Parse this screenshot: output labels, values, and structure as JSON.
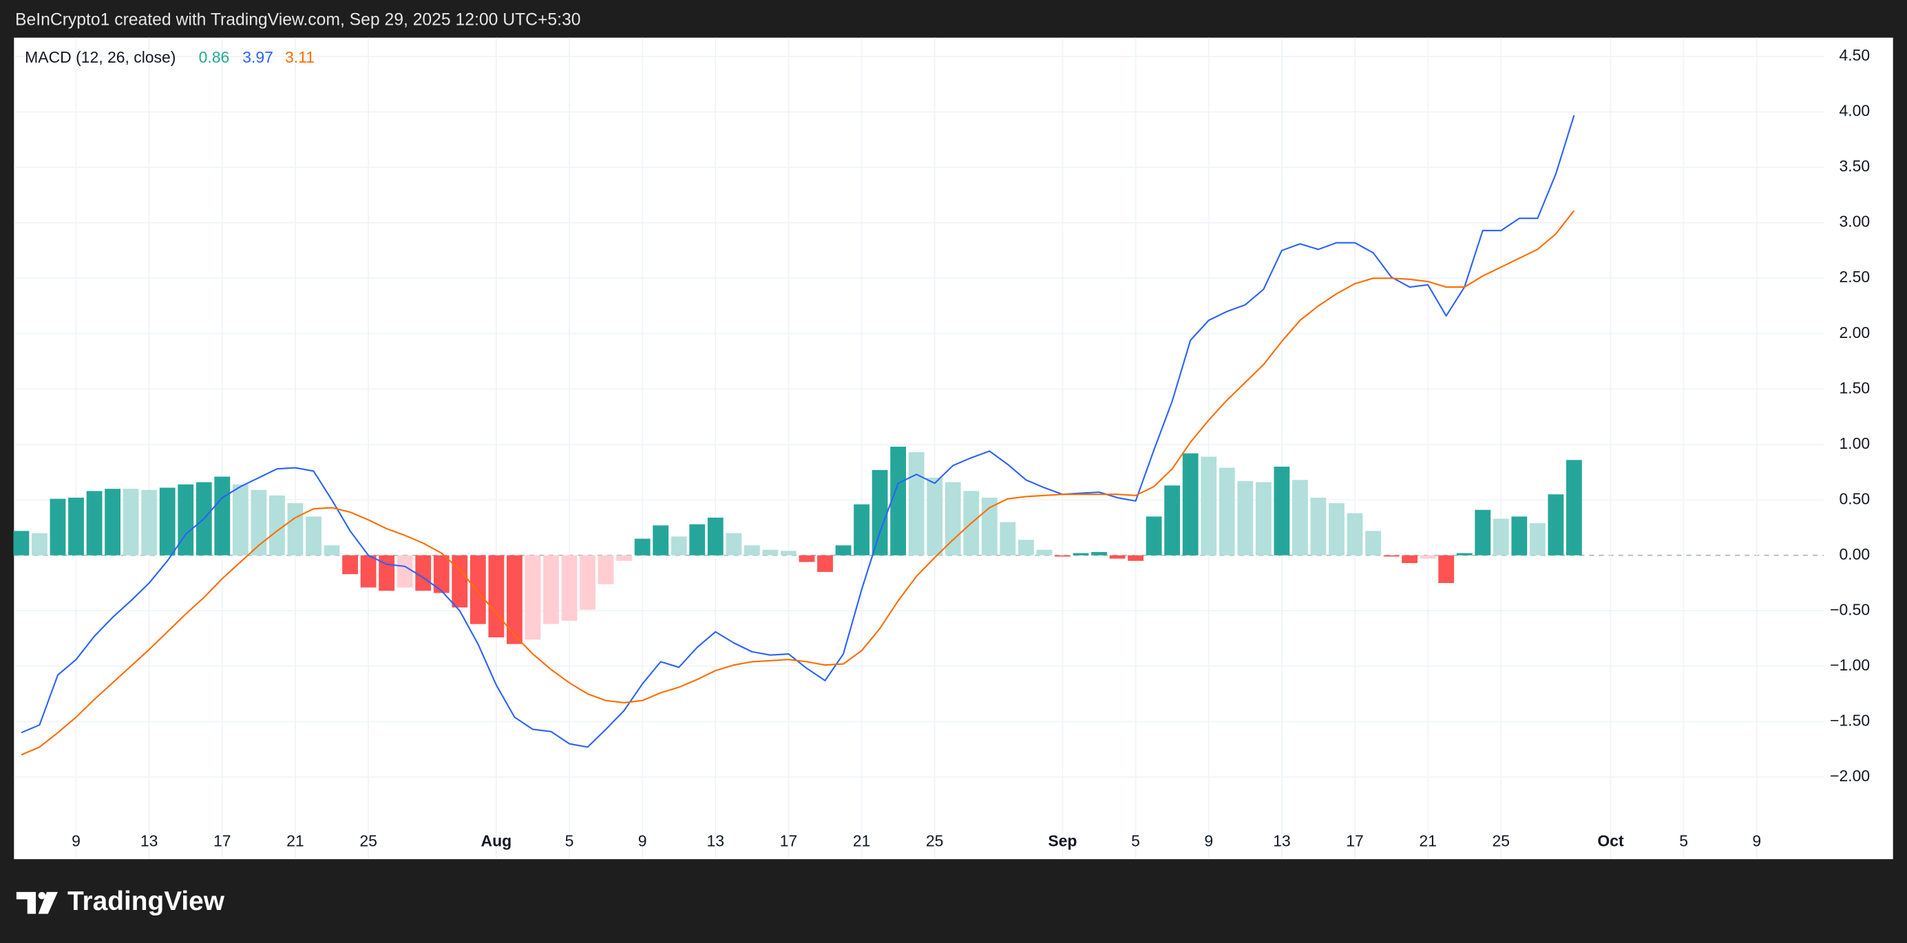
{
  "header": {
    "text": "BeInCrypto1 created with TradingView.com, Sep 29, 2025 12:00 UTC+5:30"
  },
  "footer": {
    "brand": "TradingView"
  },
  "chart_data": {
    "type": "combo",
    "legend_title": "MACD (12, 26, close)",
    "x": [
      "2025-07-06",
      "2025-07-07",
      "2025-07-08",
      "2025-07-09",
      "2025-07-10",
      "2025-07-11",
      "2025-07-12",
      "2025-07-13",
      "2025-07-14",
      "2025-07-15",
      "2025-07-16",
      "2025-07-17",
      "2025-07-18",
      "2025-07-19",
      "2025-07-20",
      "2025-07-21",
      "2025-07-22",
      "2025-07-23",
      "2025-07-24",
      "2025-07-25",
      "2025-07-26",
      "2025-07-27",
      "2025-07-28",
      "2025-07-29",
      "2025-07-30",
      "2025-07-31",
      "2025-08-01",
      "2025-08-02",
      "2025-08-03",
      "2025-08-04",
      "2025-08-05",
      "2025-08-06",
      "2025-08-07",
      "2025-08-08",
      "2025-08-09",
      "2025-08-10",
      "2025-08-11",
      "2025-08-12",
      "2025-08-13",
      "2025-08-14",
      "2025-08-15",
      "2025-08-16",
      "2025-08-17",
      "2025-08-18",
      "2025-08-19",
      "2025-08-20",
      "2025-08-21",
      "2025-08-22",
      "2025-08-23",
      "2025-08-24",
      "2025-08-25",
      "2025-08-26",
      "2025-08-27",
      "2025-08-28",
      "2025-08-29",
      "2025-08-30",
      "2025-08-31",
      "2025-09-01",
      "2025-09-02",
      "2025-09-03",
      "2025-09-04",
      "2025-09-05",
      "2025-09-06",
      "2025-09-07",
      "2025-09-08",
      "2025-09-09",
      "2025-09-10",
      "2025-09-11",
      "2025-09-12",
      "2025-09-13",
      "2025-09-14",
      "2025-09-15",
      "2025-09-16",
      "2025-09-17",
      "2025-09-18",
      "2025-09-19",
      "2025-09-20",
      "2025-09-21",
      "2025-09-22",
      "2025-09-23",
      "2025-09-24",
      "2025-09-25",
      "2025-09-26",
      "2025-09-27",
      "2025-09-28",
      "2025-09-29"
    ],
    "series": [
      {
        "type": "bar",
        "colors": {
          "rise": "#26a69a",
          "fall": "#b2dfdb",
          "neg_fall": "#ff5252",
          "neg_rise": "#ffcdd2"
        },
        "values": [
          0.22,
          0.2,
          0.51,
          0.52,
          0.58,
          0.6,
          0.6,
          0.59,
          0.61,
          0.64,
          0.66,
          0.71,
          0.64,
          0.59,
          0.54,
          0.47,
          0.35,
          0.09,
          -0.17,
          -0.29,
          -0.32,
          -0.29,
          -0.32,
          -0.34,
          -0.47,
          -0.62,
          -0.74,
          -0.8,
          -0.76,
          -0.62,
          -0.59,
          -0.49,
          -0.26,
          -0.05,
          0.15,
          0.27,
          0.17,
          0.28,
          0.34,
          0.2,
          0.09,
          0.05,
          0.04,
          -0.06,
          -0.15,
          0.09,
          0.46,
          0.77,
          0.98,
          0.93,
          0.7,
          0.66,
          0.58,
          0.52,
          0.3,
          0.14,
          0.05,
          -0.01,
          0.02,
          0.03,
          -0.03,
          -0.05,
          0.35,
          0.63,
          0.92,
          0.89,
          0.79,
          0.67,
          0.66,
          0.8,
          0.68,
          0.52,
          0.47,
          0.38,
          0.22,
          -0.01,
          -0.07,
          -0.03,
          -0.25,
          0.02,
          0.41,
          0.33,
          0.35,
          0.29,
          0.55,
          0.86
        ]
      },
      {
        "type": "line",
        "color": "#2962ff",
        "values": [
          -1.6,
          -1.53,
          -1.08,
          -0.94,
          -0.73,
          -0.56,
          -0.41,
          -0.25,
          -0.05,
          0.19,
          0.33,
          0.52,
          0.62,
          0.7,
          0.78,
          0.79,
          0.76,
          0.5,
          0.22,
          0.0,
          -0.08,
          -0.1,
          -0.2,
          -0.32,
          -0.5,
          -0.8,
          -1.17,
          -1.46,
          -1.57,
          -1.59,
          -1.7,
          -1.73,
          -1.57,
          -1.4,
          -1.16,
          -0.96,
          -1.01,
          -0.83,
          -0.69,
          -0.79,
          -0.87,
          -0.9,
          -0.89,
          -1.02,
          -1.13,
          -0.89,
          -0.31,
          0.21,
          0.65,
          0.73,
          0.65,
          0.81,
          0.88,
          0.94,
          0.82,
          0.68,
          0.61,
          0.55,
          0.56,
          0.57,
          0.52,
          0.49,
          0.95,
          1.39,
          1.94,
          2.12,
          2.2,
          2.26,
          2.4,
          2.75,
          2.81,
          2.76,
          2.82,
          2.82,
          2.73,
          2.51,
          2.42,
          2.44,
          2.16,
          2.42,
          2.93,
          2.93,
          3.04,
          3.04,
          3.44,
          3.97
        ]
      },
      {
        "type": "line",
        "color": "#ff6d00",
        "values": [
          -1.8,
          -1.73,
          -1.6,
          -1.46,
          -1.3,
          -1.15,
          -1.0,
          -0.85,
          -0.69,
          -0.53,
          -0.38,
          -0.21,
          -0.06,
          0.09,
          0.22,
          0.34,
          0.42,
          0.43,
          0.39,
          0.32,
          0.24,
          0.18,
          0.11,
          0.02,
          -0.13,
          -0.33,
          -0.52,
          -0.72,
          -0.89,
          -1.03,
          -1.15,
          -1.25,
          -1.31,
          -1.33,
          -1.31,
          -1.24,
          -1.19,
          -1.12,
          -1.04,
          -0.99,
          -0.96,
          -0.95,
          -0.94,
          -0.96,
          -0.99,
          -0.98,
          -0.86,
          -0.66,
          -0.41,
          -0.19,
          -0.02,
          0.14,
          0.29,
          0.43,
          0.51,
          0.53,
          0.54,
          0.55,
          0.55,
          0.55,
          0.55,
          0.54,
          0.62,
          0.78,
          1.02,
          1.22,
          1.4,
          1.56,
          1.72,
          1.93,
          2.12,
          2.25,
          2.36,
          2.45,
          2.5,
          2.5,
          2.49,
          2.47,
          2.42,
          2.42,
          2.52,
          2.6,
          2.68,
          2.76,
          2.9,
          3.11
        ]
      }
    ],
    "xlim": [
      "2025-07-05T14:24",
      "2025-10-12T16:00"
    ],
    "xticks": [
      {
        "value": "2025-07-09",
        "label": "9"
      },
      {
        "value": "2025-07-13",
        "label": "13"
      },
      {
        "value": "2025-07-17",
        "label": "17"
      },
      {
        "value": "2025-07-21",
        "label": "21"
      },
      {
        "value": "2025-07-25",
        "label": "25"
      },
      {
        "value": "2025-08-01",
        "label": "Aug"
      },
      {
        "value": "2025-08-05",
        "label": "5"
      },
      {
        "value": "2025-08-09",
        "label": "9"
      },
      {
        "value": "2025-08-13",
        "label": "13"
      },
      {
        "value": "2025-08-17",
        "label": "17"
      },
      {
        "value": "2025-08-21",
        "label": "21"
      },
      {
        "value": "2025-08-25",
        "label": "25"
      },
      {
        "value": "2025-09-01",
        "label": "Sep"
      },
      {
        "value": "2025-09-05",
        "label": "5"
      },
      {
        "value": "2025-09-09",
        "label": "9"
      },
      {
        "value": "2025-09-13",
        "label": "13"
      },
      {
        "value": "2025-09-17",
        "label": "17"
      },
      {
        "value": "2025-09-21",
        "label": "21"
      },
      {
        "value": "2025-09-25",
        "label": "25"
      },
      {
        "value": "2025-10-01",
        "label": "Oct"
      },
      {
        "value": "2025-10-05",
        "label": "5"
      },
      {
        "value": "2025-10-09",
        "label": "9"
      }
    ],
    "ylim": [
      -2.73,
      4.67
    ],
    "yticks": [
      {
        "value": -2,
        "label": "−2.00"
      },
      {
        "value": -1.5,
        "label": "−1.50"
      },
      {
        "value": -1,
        "label": "−1.00"
      },
      {
        "value": -0.5,
        "label": "−0.50"
      },
      {
        "value": 0,
        "label": "0.00"
      },
      {
        "value": 0.5,
        "label": "0.50"
      },
      {
        "value": 1,
        "label": "1.00"
      },
      {
        "value": 1.5,
        "label": "1.50"
      },
      {
        "value": 2,
        "label": "2.00"
      },
      {
        "value": 2.5,
        "label": "2.50"
      },
      {
        "value": 3,
        "label": "3.00"
      },
      {
        "value": 3.5,
        "label": "3.50"
      },
      {
        "value": 4,
        "label": "4.00"
      },
      {
        "value": 4.5,
        "label": "4.50"
      }
    ],
    "grid": true
  }
}
